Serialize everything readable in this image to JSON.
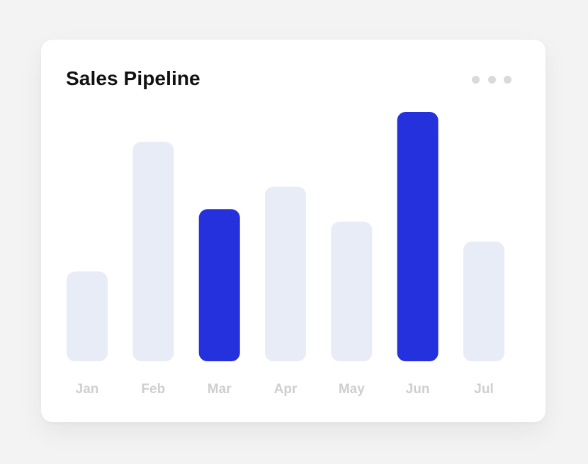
{
  "card": {
    "title": "Sales Pipeline",
    "menu_icon": "more-horizontal-icon"
  },
  "colors": {
    "highlight": "#2431dc",
    "muted": "#e8ecf6",
    "label": "#cfcfcf",
    "title": "#111111"
  },
  "chart_data": {
    "type": "bar",
    "title": "Sales Pipeline",
    "categories": [
      "Jan",
      "Feb",
      "Mar",
      "Apr",
      "May",
      "Jun",
      "Jul"
    ],
    "values": [
      36,
      88,
      61,
      70,
      56,
      100,
      48
    ],
    "highlighted": [
      "Mar",
      "Jun"
    ],
    "ylim": [
      0,
      100
    ],
    "grid": false,
    "legend": "none",
    "xlabel": "",
    "ylabel": ""
  }
}
